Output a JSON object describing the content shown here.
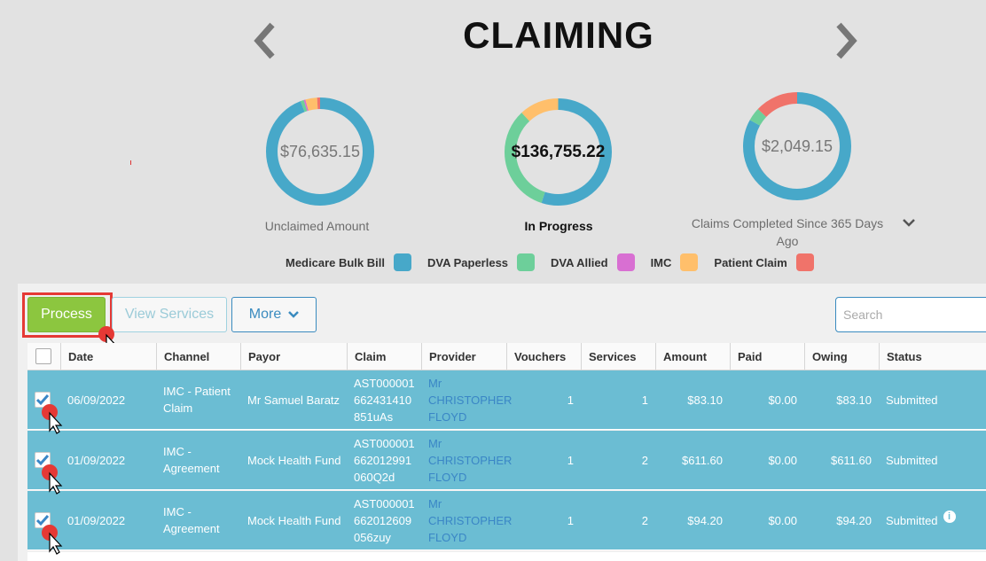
{
  "header": {
    "title": "CLAIMING"
  },
  "summary": [
    {
      "amount": "$76,635.15",
      "label": "Unclaimed Amount",
      "segments": [
        {
          "color": "#47a8c9",
          "fraction": 0.94
        },
        {
          "color": "#6dcf9a",
          "fraction": 0.01
        },
        {
          "color": "#d86fd2",
          "fraction": 0.005
        },
        {
          "color": "#ffbf6b",
          "fraction": 0.035
        },
        {
          "color": "#f0736a",
          "fraction": 0.01
        }
      ]
    },
    {
      "amount": "$136,755.22",
      "label": "In Progress",
      "segments": [
        {
          "color": "#47a8c9",
          "fraction": 0.55
        },
        {
          "color": "#6dcf9a",
          "fraction": 0.33
        },
        {
          "color": "#ffbf6b",
          "fraction": 0.12
        }
      ]
    },
    {
      "amount": "$2,049.15",
      "label": "Claims Completed Since 365 Days Ago",
      "segments": [
        {
          "color": "#47a8c9",
          "fraction": 0.83
        },
        {
          "color": "#6dcf9a",
          "fraction": 0.04
        },
        {
          "color": "#f0736a",
          "fraction": 0.13
        }
      ]
    }
  ],
  "legend": [
    {
      "label": "Medicare Bulk Bill",
      "color": "#47a8c9"
    },
    {
      "label": "DVA Paperless",
      "color": "#6dcf9a"
    },
    {
      "label": "DVA Allied",
      "color": "#d86fd2"
    },
    {
      "label": "IMC",
      "color": "#ffbf6b"
    },
    {
      "label": "Patient Claim",
      "color": "#f0736a"
    }
  ],
  "toolbar": {
    "process_label": "Process",
    "view_services_label": "View Services",
    "more_label": "More",
    "search_placeholder": "Search"
  },
  "table": {
    "columns": [
      "Date",
      "Channel",
      "Payor",
      "Claim",
      "Provider",
      "Vouchers",
      "Services",
      "Amount",
      "Paid",
      "Owing",
      "Status"
    ],
    "rows": [
      {
        "date": "06/09/2022",
        "channel_1": "IMC - Patient",
        "channel_2": "Claim",
        "payor": "Mr Samuel Baratz",
        "claim_1": "AST000001",
        "claim_2": "662431410",
        "claim_3": "851uAs",
        "prov_1": "Mr",
        "prov_2": "CHRISTOPHER",
        "prov_3": "FLOYD",
        "vouchers": "1",
        "services": "1",
        "amount": "$83.10",
        "paid": "$0.00",
        "owing": "$83.10",
        "status": "Submitted"
      },
      {
        "date": "01/09/2022",
        "channel_1": "IMC -",
        "channel_2": "Agreement",
        "payor": "Mock Health Fund",
        "claim_1": "AST000001",
        "claim_2": "662012991",
        "claim_3": "060Q2d",
        "prov_1": "Mr",
        "prov_2": "CHRISTOPHER",
        "prov_3": "FLOYD",
        "vouchers": "1",
        "services": "2",
        "amount": "$611.60",
        "paid": "$0.00",
        "owing": "$611.60",
        "status": "Submitted"
      },
      {
        "date": "01/09/2022",
        "channel_1": "IMC -",
        "channel_2": "Agreement",
        "payor": "Mock Health Fund",
        "claim_1": "AST000001",
        "claim_2": "662012609",
        "claim_3": "056zuy",
        "prov_1": "Mr",
        "prov_2": "CHRISTOPHER",
        "prov_3": "FLOYD",
        "vouchers": "1",
        "services": "2",
        "amount": "$94.20",
        "paid": "$0.00",
        "owing": "$94.20",
        "status": "Submitted"
      }
    ]
  }
}
